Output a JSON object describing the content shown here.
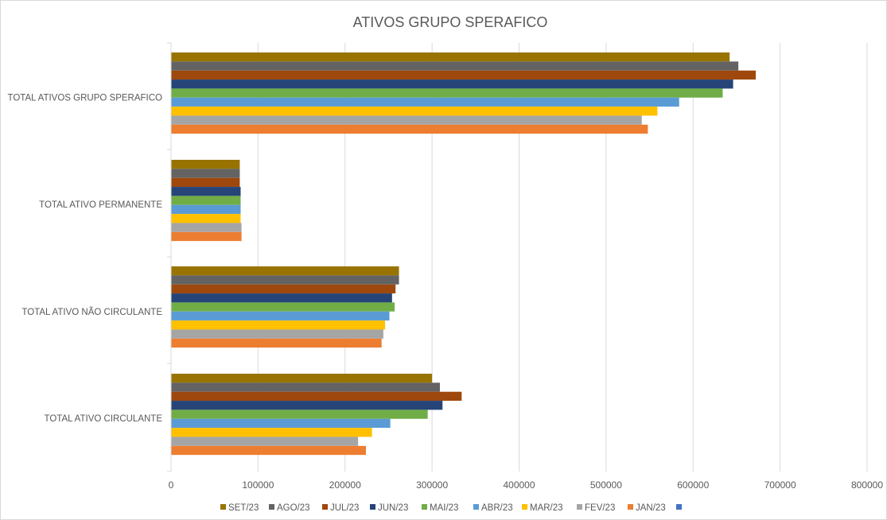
{
  "chart_data": {
    "type": "bar",
    "orientation": "horizontal",
    "title": "ATIVOS GRUPO SPERAFICO",
    "xlabel": "",
    "ylabel": "",
    "xlim": [
      0,
      800000
    ],
    "ticks": [
      "0",
      "100000",
      "200000",
      "300000",
      "400000",
      "500000",
      "600000",
      "700000",
      "800000"
    ],
    "grid": true,
    "legend_position": "bottom",
    "categories": [
      "TOTAL ATIVOS GRUPO SPERAFICO",
      "TOTAL ATIVO PERMANENTE",
      "TOTAL ATIVO NÃO CIRCULANTE",
      "TOTAL ATIVO CIRCULANTE"
    ],
    "series": [
      {
        "name": "SET/23",
        "color": "#997300",
        "values": [
          642000,
          79000,
          262000,
          300000
        ]
      },
      {
        "name": "AGO/23",
        "color": "#636363",
        "values": [
          652000,
          79000,
          262000,
          309000
        ]
      },
      {
        "name": "JUL/23",
        "color": "#9e480e",
        "values": [
          672000,
          79000,
          258000,
          334000
        ]
      },
      {
        "name": "JUN/23",
        "color": "#264478",
        "values": [
          646000,
          80000,
          254000,
          312000
        ]
      },
      {
        "name": "MAI/23",
        "color": "#70ad47",
        "values": [
          634000,
          80000,
          257000,
          295000
        ]
      },
      {
        "name": "ABR/23",
        "color": "#5b9bd5",
        "values": [
          584000,
          80000,
          251000,
          252000
        ]
      },
      {
        "name": "MAR/23",
        "color": "#ffc000",
        "values": [
          559000,
          80000,
          246000,
          231000
        ]
      },
      {
        "name": "FEV/23",
        "color": "#a5a5a5",
        "values": [
          541000,
          81000,
          244000,
          215000
        ]
      },
      {
        "name": "JAN/23",
        "color": "#ed7d31",
        "values": [
          548000,
          81000,
          242000,
          224000
        ]
      },
      {
        "name": "",
        "color": "#4472c4",
        "values": [
          null,
          null,
          null,
          null
        ]
      }
    ]
  }
}
